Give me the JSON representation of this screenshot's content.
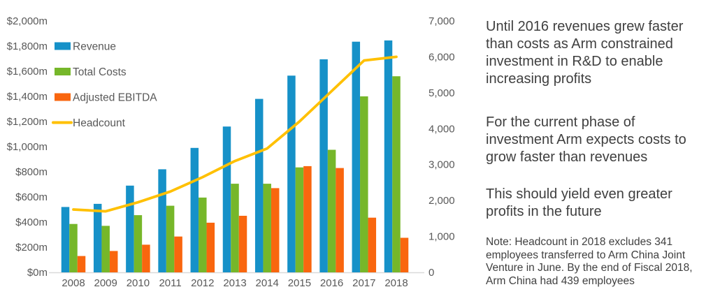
{
  "text_panel": {
    "paragraphs": [
      "Until 2016 revenues grew faster\nthan costs as Arm constrained\ninvestment in R&D to enable\nincreasing profits",
      "For the current phase of\ninvestment Arm expects costs to\ngrow faster than revenues",
      "This should yield even greater\nprofits in the future"
    ],
    "note": "Note: Headcount in 2018 excludes 341\nemployees transferred to Arm China Joint\nVenture in June. By the end of Fiscal 2018,\nArm China had 439 employees"
  },
  "chart_data": {
    "type": "bar",
    "title": "",
    "xlabel": "",
    "ylabel": "",
    "categories": [
      "2008",
      "2009",
      "2010",
      "2011",
      "2012",
      "2013",
      "2014",
      "2015",
      "2016",
      "2017",
      "2018"
    ],
    "series": [
      {
        "name": "Revenue",
        "type": "bar",
        "axis": "left",
        "color": "#1691c8",
        "values": [
          520,
          545,
          690,
          820,
          990,
          1160,
          1380,
          1565,
          1695,
          1835,
          1845
        ]
      },
      {
        "name": "Total Costs",
        "type": "bar",
        "axis": "left",
        "color": "#76b72a",
        "values": [
          385,
          370,
          455,
          530,
          595,
          705,
          705,
          835,
          975,
          1400,
          1560
        ]
      },
      {
        "name": "Adjusted EBITDA",
        "type": "bar",
        "axis": "left",
        "color": "#f9660e",
        "values": [
          130,
          170,
          220,
          285,
          395,
          450,
          670,
          845,
          830,
          435,
          275
        ]
      },
      {
        "name": "Headcount",
        "type": "line",
        "axis": "right",
        "color": "#ffc000",
        "values": [
          1750,
          1700,
          1950,
          2250,
          2650,
          3100,
          3450,
          4200,
          5050,
          5900,
          6000
        ]
      }
    ],
    "left_axis": {
      "min": 0,
      "max": 2000,
      "step": 200,
      "unit": "$m",
      "tick_labels": [
        "$0m",
        "$200m",
        "$400m",
        "$600m",
        "$800m",
        "$1,000m",
        "$1,200m",
        "$1,400m",
        "$1,600m",
        "$1,800m",
        "$2,000m"
      ]
    },
    "right_axis": {
      "min": 0,
      "max": 7000,
      "step": 1000,
      "unit": "people",
      "tick_labels": [
        "0",
        "1,000",
        "2,000",
        "3,000",
        "4,000",
        "5,000",
        "6,000",
        "7,000"
      ]
    },
    "legend_position": "inside top-left",
    "grid": false,
    "axis_text_color": "#595959",
    "axis_line_color": "#d9d9d9"
  }
}
